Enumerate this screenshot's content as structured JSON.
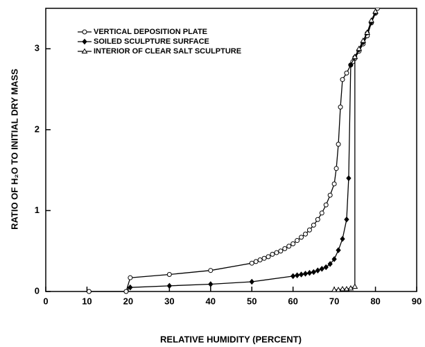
{
  "chart_data": {
    "type": "line",
    "xlabel": "RELATIVE HUMIDITY (PERCENT)",
    "ylabel": "RATIO OF H₂O TO INITIAL DRY MASS",
    "xlim": [
      0,
      90
    ],
    "xticks": [
      0,
      10,
      20,
      30,
      40,
      50,
      60,
      70,
      80,
      90
    ],
    "ylim": [
      0,
      3.5
    ],
    "yticks": [
      0,
      1,
      2,
      3
    ],
    "legend": "upper left",
    "series": [
      {
        "name": "VERTICAL DEPOSITION PLATE",
        "color": "#000000",
        "marker": "circle",
        "x": [
          10.5,
          19.5,
          20.5,
          30,
          40,
          50,
          51,
          52,
          53,
          54,
          55,
          56,
          57,
          58,
          59,
          60,
          61,
          62,
          63,
          64,
          65,
          66,
          67,
          68,
          69,
          70,
          70.5,
          71,
          71.5,
          72,
          73,
          74,
          74.5,
          75,
          76,
          77,
          78,
          79,
          80,
          80.5
        ],
        "values": [
          0,
          0,
          0.17,
          0.21,
          0.26,
          0.35,
          0.37,
          0.39,
          0.41,
          0.43,
          0.46,
          0.48,
          0.5,
          0.53,
          0.56,
          0.59,
          0.63,
          0.67,
          0.71,
          0.76,
          0.82,
          0.89,
          0.97,
          1.07,
          1.19,
          1.33,
          1.52,
          1.82,
          2.28,
          2.62,
          2.7,
          2.8,
          2.84,
          2.88,
          2.97,
          3.06,
          3.16,
          3.32,
          3.44,
          3.5
        ]
      },
      {
        "name": "SOILED SCULPTURE SURFACE",
        "color": "#000000",
        "marker": "diamond",
        "x": [
          20.5,
          30,
          40,
          50,
          60,
          61,
          62,
          63,
          64,
          65,
          66,
          67,
          68,
          69,
          70,
          71,
          72,
          73,
          73.5,
          74,
          75,
          76,
          77,
          78,
          79,
          80
        ],
        "values": [
          0.05,
          0.07,
          0.09,
          0.12,
          0.19,
          0.2,
          0.21,
          0.22,
          0.23,
          0.24,
          0.26,
          0.28,
          0.3,
          0.34,
          0.4,
          0.51,
          0.65,
          0.89,
          1.4,
          2.8,
          2.9,
          2.99,
          3.08,
          3.2,
          3.33,
          3.45
        ]
      },
      {
        "name": "INTERIOR OF CLEAR SALT SCULPTURE",
        "color": "#000000",
        "marker": "triangle",
        "x": [
          70,
          71,
          72,
          73,
          74,
          75,
          75,
          76,
          77,
          78,
          79,
          80
        ],
        "values": [
          0.02,
          0.02,
          0.03,
          0.03,
          0.04,
          0.06,
          2.9,
          3.0,
          3.1,
          3.2,
          3.35,
          3.46
        ]
      }
    ]
  }
}
